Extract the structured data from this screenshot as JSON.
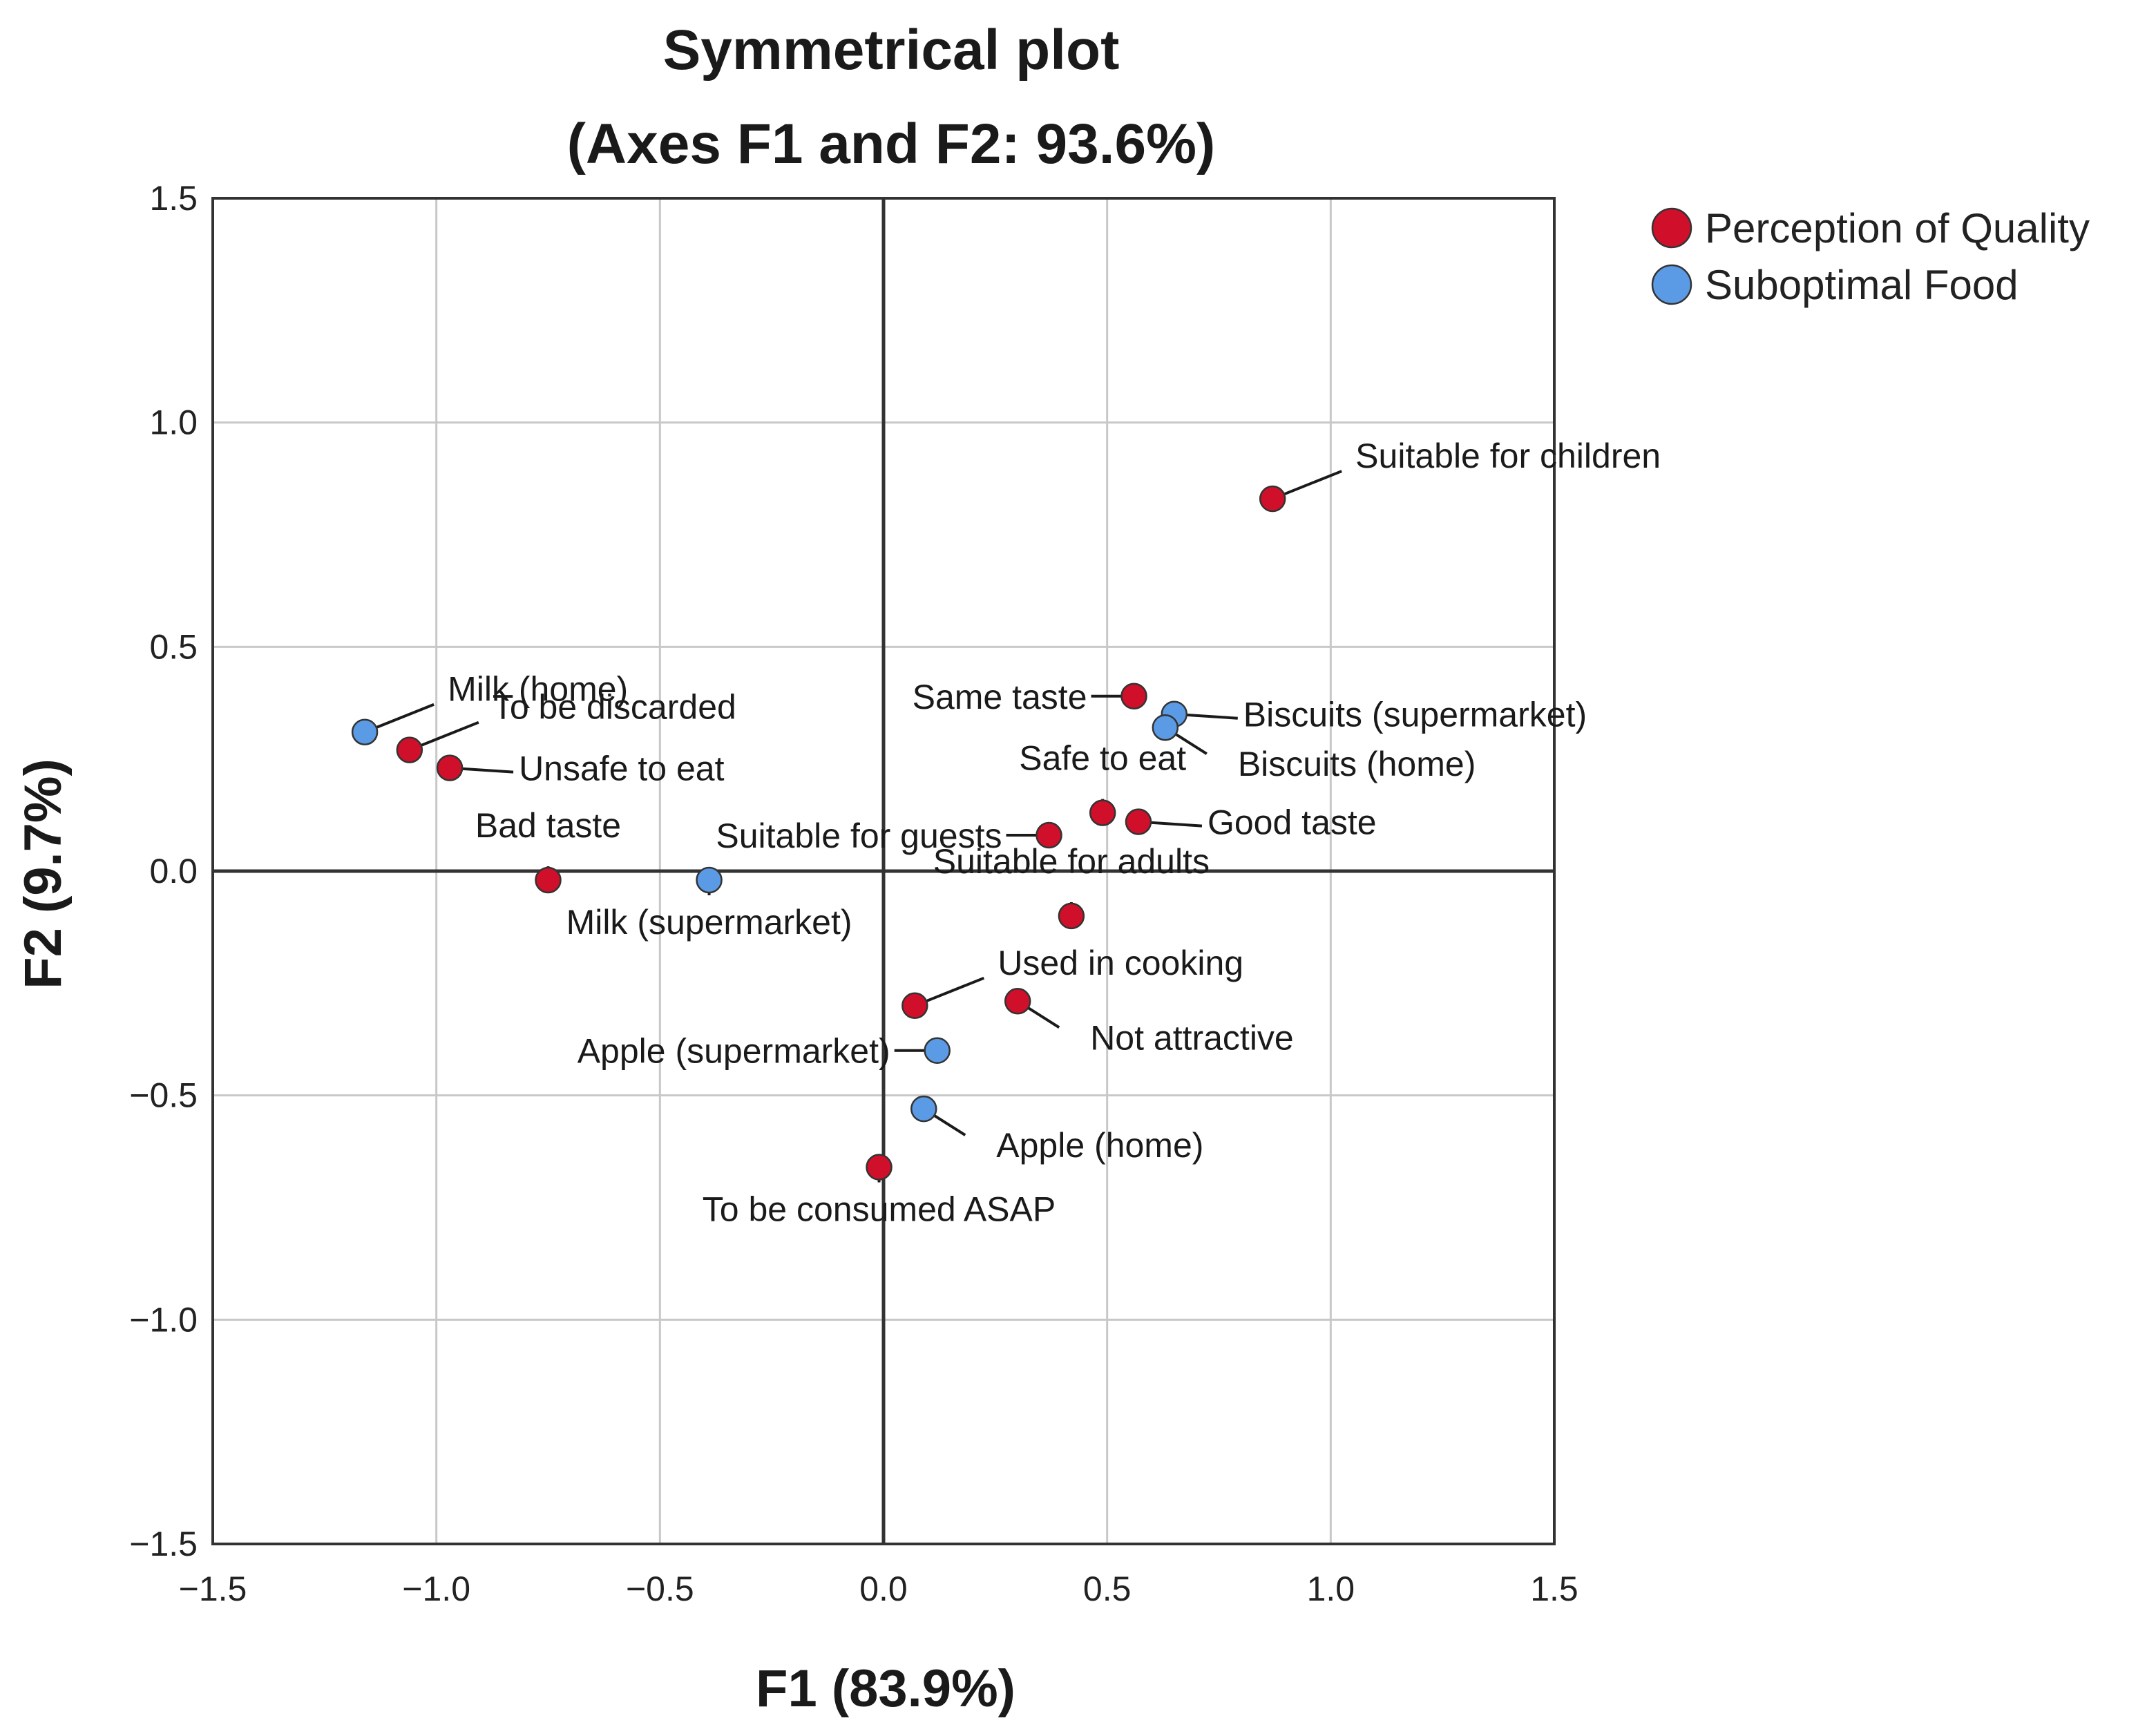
{
  "chart_data": {
    "type": "scatter",
    "title": "Symmetrical plot",
    "subtitle": "(Axes F1 and F2: 93.6%)",
    "xlabel": "F1 (83.9%)",
    "ylabel": "F2 (9.7%)",
    "xlim": [
      -1.5,
      1.5
    ],
    "ylim": [
      -1.5,
      1.5
    ],
    "x_ticks": [
      -1.5,
      -1.0,
      -0.5,
      0.0,
      0.5,
      1.0,
      1.5
    ],
    "y_ticks": [
      -1.5,
      -1.0,
      -0.5,
      0.0,
      0.5,
      1.0,
      1.5
    ],
    "x_tick_labels": [
      "−1.5",
      "−1.0",
      "−0.5",
      "0.0",
      "0.5",
      "1.0",
      "1.5"
    ],
    "y_tick_labels": [
      "−1.5",
      "−1.0",
      "−0.5",
      "0.0",
      "0.5",
      "1.0",
      "1.5"
    ],
    "grid": true,
    "legend_position": "top-right",
    "series": [
      {
        "name": "Perception of Quality",
        "color": "#d0102a",
        "points": [
          {
            "label": "Suitable for children",
            "x": 0.87,
            "y": 0.83,
            "anchor": "ne"
          },
          {
            "label": "Same taste",
            "x": 0.56,
            "y": 0.39,
            "anchor": "w"
          },
          {
            "label": "Safe to eat",
            "x": 0.49,
            "y": 0.13,
            "anchor": "n"
          },
          {
            "label": "Good taste",
            "x": 0.57,
            "y": 0.11,
            "anchor": "e"
          },
          {
            "label": "Suitable for guests",
            "x": 0.37,
            "y": 0.08,
            "anchor": "w"
          },
          {
            "label": "Suitable for adults",
            "x": 0.42,
            "y": -0.1,
            "anchor": "n"
          },
          {
            "label": "Used in cooking",
            "x": 0.07,
            "y": -0.3,
            "anchor": "ne"
          },
          {
            "label": "Not attractive",
            "x": 0.3,
            "y": -0.29,
            "anchor": "se"
          },
          {
            "label": "To be consumed ASAP",
            "x": -0.01,
            "y": -0.66,
            "anchor": "s"
          },
          {
            "label": "To be discarded",
            "x": -1.06,
            "y": 0.27,
            "anchor": "ne"
          },
          {
            "label": "Unsafe to eat",
            "x": -0.97,
            "y": 0.23,
            "anchor": "e"
          },
          {
            "label": "Bad taste",
            "x": -0.75,
            "y": -0.02,
            "anchor": "n"
          }
        ]
      },
      {
        "name": "Suboptimal Food",
        "color": "#5b9be6",
        "points": [
          {
            "label": "Milk (home)",
            "x": -1.16,
            "y": 0.31,
            "anchor": "ne"
          },
          {
            "label": "Milk (supermarket)",
            "x": -0.39,
            "y": -0.02,
            "anchor": "s"
          },
          {
            "label": "Biscuits (supermarket)",
            "x": 0.65,
            "y": 0.35,
            "anchor": "e"
          },
          {
            "label": "Biscuits (home)",
            "x": 0.63,
            "y": 0.32,
            "anchor": "se"
          },
          {
            "label": "Apple (supermarket)",
            "x": 0.12,
            "y": -0.4,
            "anchor": "w"
          },
          {
            "label": "Apple (home)",
            "x": 0.09,
            "y": -0.53,
            "anchor": "se"
          }
        ]
      }
    ]
  }
}
